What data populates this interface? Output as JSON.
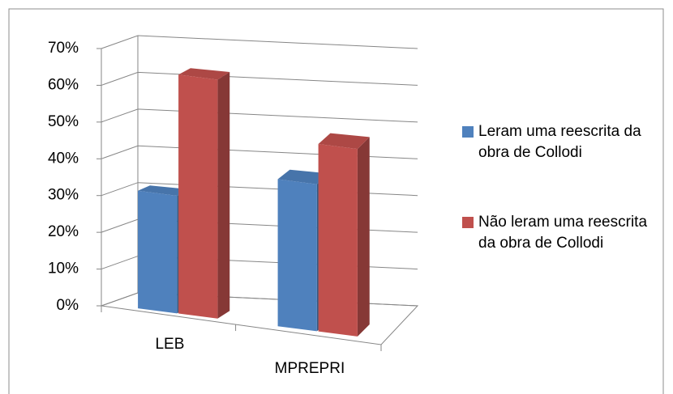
{
  "chart_data": {
    "type": "bar3d",
    "categories": [
      "LEB",
      "MPREPRI"
    ],
    "series": [
      {
        "name": "Leram uma reescrita da obra de Collodi",
        "color": "#4f81bd",
        "values": [
          32,
          40
        ]
      },
      {
        "name": "Não leram uma reescrita da obra de Collodi",
        "color": "#c0504d",
        "values": [
          65,
          51
        ]
      }
    ],
    "ylim": [
      0,
      70
    ],
    "yticks": [
      {
        "value": 0,
        "label": "0%"
      },
      {
        "value": 10,
        "label": "10%"
      },
      {
        "value": 20,
        "label": "20%"
      },
      {
        "value": 30,
        "label": "30%"
      },
      {
        "value": 40,
        "label": "40%"
      },
      {
        "value": 50,
        "label": "50%"
      },
      {
        "value": 60,
        "label": "60%"
      },
      {
        "value": 70,
        "label": "70%"
      }
    ],
    "grid": true,
    "legend": "right"
  }
}
